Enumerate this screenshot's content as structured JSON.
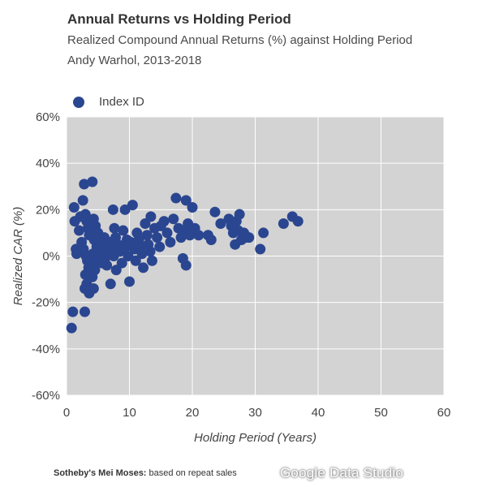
{
  "header": {
    "title": "Annual Returns vs Holding Period",
    "subtitle": "Realized Compound Annual Returns (%) against Holding Period",
    "subtitle2": "Andy Warhol, 2013-2018"
  },
  "footer": {
    "source_bold": "Sotheby's Mei Moses:",
    "source_text": " based on repeat sales",
    "watermark": "Google Data Studio"
  },
  "colors": {
    "point": "#2b4690",
    "plot_bg": "#d3d3d3",
    "grid": "#ffffff"
  },
  "chart_data": {
    "type": "scatter",
    "xlabel": "Holding Period (Years)",
    "ylabel": "Realized CAR (%)",
    "xlim": [
      0,
      60
    ],
    "ylim": [
      -60,
      60
    ],
    "x_ticks": [
      0,
      10,
      20,
      30,
      40,
      50,
      60
    ],
    "x_tick_labels": [
      "0",
      "10",
      "20",
      "30",
      "40",
      "50",
      "60"
    ],
    "y_ticks": [
      60,
      40,
      20,
      0,
      -20,
      -40,
      -60
    ],
    "y_tick_labels": [
      "60%",
      "40%",
      "20%",
      "0%",
      "-20%",
      "-40%",
      "-60%"
    ],
    "grid": true,
    "legend_position": "top-left",
    "series": [
      {
        "name": "Index ID",
        "points": [
          [
            0.8,
            -31
          ],
          [
            1.0,
            -24
          ],
          [
            2.9,
            -24
          ],
          [
            1.2,
            21
          ],
          [
            1.3,
            15
          ],
          [
            1.5,
            3
          ],
          [
            1.6,
            1
          ],
          [
            2.0,
            11
          ],
          [
            2.2,
            17
          ],
          [
            2.6,
            24
          ],
          [
            2.8,
            31
          ],
          [
            3.0,
            18
          ],
          [
            3.2,
            15
          ],
          [
            3.4,
            12
          ],
          [
            3.6,
            9
          ],
          [
            2.4,
            6
          ],
          [
            2.7,
            3
          ],
          [
            3.1,
            0
          ],
          [
            3.3,
            -2
          ],
          [
            3.5,
            -5
          ],
          [
            3.0,
            -8
          ],
          [
            3.2,
            -12
          ],
          [
            2.9,
            -14
          ],
          [
            3.6,
            -16
          ],
          [
            4.1,
            32
          ],
          [
            4.3,
            16
          ],
          [
            4.6,
            13
          ],
          [
            4.0,
            10
          ],
          [
            4.4,
            7
          ],
          [
            4.8,
            4
          ],
          [
            4.2,
            1
          ],
          [
            4.7,
            -2
          ],
          [
            4.5,
            -6
          ],
          [
            4.1,
            -9
          ],
          [
            4.3,
            -14
          ],
          [
            5.0,
            10
          ],
          [
            5.4,
            6
          ],
          [
            5.8,
            3
          ],
          [
            5.2,
            0
          ],
          [
            5.6,
            -3
          ],
          [
            6.0,
            8
          ],
          [
            6.3,
            5
          ],
          [
            6.6,
            2
          ],
          [
            6.1,
            -1
          ],
          [
            6.4,
            -4
          ],
          [
            6.8,
            6
          ],
          [
            7.2,
            3
          ],
          [
            7.0,
            -12
          ],
          [
            7.4,
            20
          ],
          [
            7.6,
            12
          ],
          [
            7.8,
            8
          ],
          [
            7.5,
            0
          ],
          [
            7.9,
            -6
          ],
          [
            8.2,
            5
          ],
          [
            8.5,
            2
          ],
          [
            8.8,
            -3
          ],
          [
            9.0,
            11
          ],
          [
            9.3,
            20
          ],
          [
            9.6,
            7
          ],
          [
            9.4,
            4
          ],
          [
            9.8,
            0
          ],
          [
            10.0,
            -11
          ],
          [
            10.2,
            6
          ],
          [
            10.5,
            22
          ],
          [
            10.8,
            3
          ],
          [
            11.0,
            -2
          ],
          [
            11.2,
            10
          ],
          [
            11.5,
            7
          ],
          [
            11.8,
            4
          ],
          [
            12.0,
            1
          ],
          [
            12.2,
            -5
          ],
          [
            12.5,
            14
          ],
          [
            12.8,
            9
          ],
          [
            13.0,
            5
          ],
          [
            13.3,
            2
          ],
          [
            13.6,
            -2
          ],
          [
            13.4,
            17
          ],
          [
            14.0,
            12
          ],
          [
            14.4,
            8
          ],
          [
            14.8,
            4
          ],
          [
            15.0,
            13
          ],
          [
            15.5,
            15
          ],
          [
            16.0,
            10
          ],
          [
            16.5,
            6
          ],
          [
            17.0,
            16
          ],
          [
            17.4,
            25
          ],
          [
            17.8,
            12
          ],
          [
            18.2,
            8
          ],
          [
            18.5,
            -1
          ],
          [
            18.8,
            11
          ],
          [
            19.0,
            24
          ],
          [
            19.3,
            14
          ],
          [
            19.6,
            9
          ],
          [
            19.0,
            -4
          ],
          [
            20.0,
            21
          ],
          [
            20.4,
            12
          ],
          [
            21.0,
            9
          ],
          [
            22.5,
            9
          ],
          [
            23.0,
            7
          ],
          [
            23.6,
            19
          ],
          [
            24.5,
            14
          ],
          [
            25.8,
            16
          ],
          [
            26.2,
            13
          ],
          [
            26.5,
            10
          ],
          [
            26.8,
            5
          ],
          [
            27.0,
            15
          ],
          [
            27.3,
            11
          ],
          [
            27.5,
            18
          ],
          [
            27.8,
            7
          ],
          [
            28.2,
            10
          ],
          [
            28.5,
            8
          ],
          [
            29.0,
            8
          ],
          [
            30.8,
            3
          ],
          [
            31.3,
            10
          ],
          [
            34.5,
            14
          ],
          [
            35.9,
            17
          ],
          [
            36.8,
            15
          ]
        ]
      }
    ]
  }
}
